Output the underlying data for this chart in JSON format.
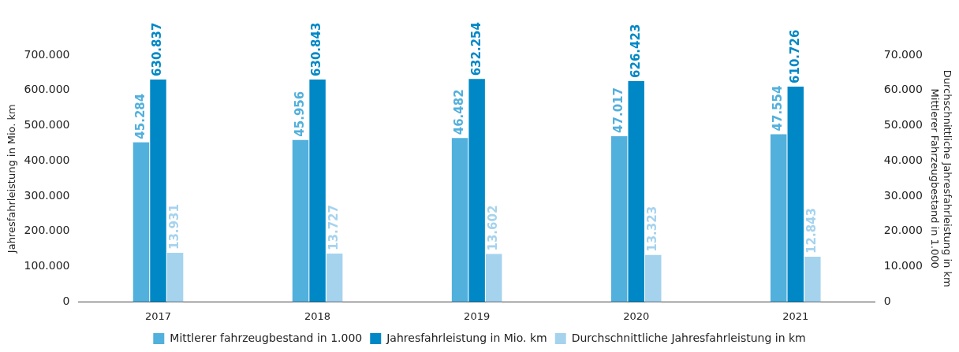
{
  "chart_data": {
    "type": "bar",
    "ylabel": "Jahresfahrleistung in Mio. km",
    "y2label": "Durchschnittliche Jahresfahrleistung in km\nMittlerer Fahrzeugbestand in 1.000",
    "categories": [
      "2017",
      "2018",
      "2019",
      "2020",
      "2021"
    ],
    "series": [
      {
        "name": "Mittlerer fahrzeugbestand in 1.000",
        "color": "#52b0dc",
        "axis": "y2",
        "values": [
          45284,
          45956,
          46482,
          47017,
          47554
        ],
        "value_labels": [
          "45.284",
          "45.956",
          "46.482",
          "47.017",
          "47.554"
        ]
      },
      {
        "name": "Jahresfahrleistung in Mio. km",
        "color": "#0088c6",
        "values": [
          630837,
          630843,
          632254,
          626423,
          610726
        ],
        "value_labels": [
          "630.837",
          "630.843",
          "632.254",
          "626.423",
          "610.726"
        ]
      },
      {
        "name": "Durchschnittliche Jahresfahrleistung in km",
        "color": "#a5d3ee",
        "axis": "y2",
        "values": [
          13931,
          13727,
          13602,
          13323,
          12843
        ],
        "value_labels": [
          "13.931",
          "13.727",
          "13.602",
          "13.323",
          "12.843"
        ]
      }
    ],
    "ylim": [
      0,
      700000
    ],
    "yticks": [
      {
        "value": 0,
        "label": "0"
      },
      {
        "value": 100000,
        "label": "100.000"
      },
      {
        "value": 200000,
        "label": "200.000"
      },
      {
        "value": 300000,
        "label": "300.000"
      },
      {
        "value": 400000,
        "label": "400.000"
      },
      {
        "value": 500000,
        "label": "500.000"
      },
      {
        "value": 600000,
        "label": "600.000"
      },
      {
        "value": 700000,
        "label": "700.000"
      }
    ],
    "y2lim": [
      0,
      70000
    ],
    "y2ticks": [
      {
        "value": 0,
        "label": "0"
      },
      {
        "value": 10000,
        "label": "10.000"
      },
      {
        "value": 20000,
        "label": "20.000"
      },
      {
        "value": 30000,
        "label": "30.000"
      },
      {
        "value": 40000,
        "label": "40.000"
      },
      {
        "value": 50000,
        "label": "50.000"
      },
      {
        "value": 60000,
        "label": "60.000"
      },
      {
        "value": 70000,
        "label": "70.000"
      }
    ],
    "grid": false,
    "legend": "bottom"
  }
}
